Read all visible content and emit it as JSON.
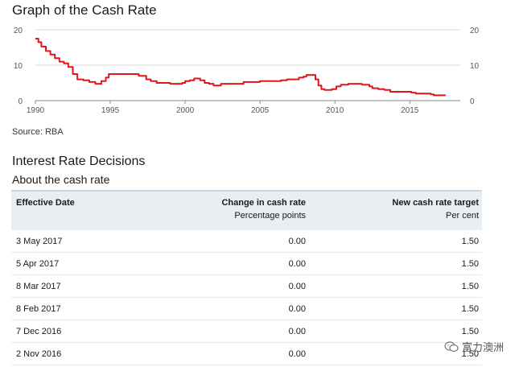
{
  "graph_title": "Graph of the Cash Rate",
  "source": "Source: RBA",
  "section_title": "Interest Rate Decisions",
  "subsection_title": "About the cash rate",
  "table": {
    "headers": {
      "date": "Effective Date",
      "change": "Change in cash rate",
      "change_unit": "Percentage points",
      "target": "New cash rate target",
      "target_unit": "Per cent"
    },
    "rows": [
      {
        "date": "3 May 2017",
        "change": "0.00",
        "target": "1.50"
      },
      {
        "date": "5 Apr 2017",
        "change": "0.00",
        "target": "1.50"
      },
      {
        "date": "8 Mar 2017",
        "change": "0.00",
        "target": "1.50"
      },
      {
        "date": "8 Feb 2017",
        "change": "0.00",
        "target": "1.50"
      },
      {
        "date": "7 Dec 2016",
        "change": "0.00",
        "target": "1.50"
      },
      {
        "date": "2 Nov 2016",
        "change": "0.00",
        "target": "1.50"
      }
    ]
  },
  "watermark": {
    "text": "富力澳洲",
    "icon": "wechat-icon"
  },
  "chart_data": {
    "type": "line",
    "title": "Graph of the Cash Rate",
    "xlabel": "",
    "ylabel": "",
    "xlim": [
      1990,
      2017.4
    ],
    "ylim": [
      0,
      20
    ],
    "xticks": [
      "1990",
      "1995",
      "2000",
      "2005",
      "2010",
      "2015"
    ],
    "yticks": [
      "0",
      "10",
      "20"
    ],
    "grid": true,
    "line_color": "#e0161c",
    "series": [
      {
        "x": [
          1990.0,
          1990.2,
          1990.4,
          1990.7,
          1991.0,
          1991.3,
          1991.6,
          1991.9,
          1992.2,
          1992.5,
          1992.8,
          1993.2,
          1993.6,
          1994.0,
          1994.4,
          1994.7,
          1994.9,
          1996.6,
          1996.9,
          1997.4,
          1997.7,
          1998.1,
          1999.0,
          1999.8,
          2000.0,
          2000.3,
          2000.6,
          2001.0,
          2001.3,
          2001.6,
          2001.9,
          2002.4,
          2003.0,
          2003.9,
          2005.0,
          2006.0,
          2006.4,
          2006.8,
          2007.6,
          2007.9,
          2008.1,
          2008.7,
          2008.9,
          2009.1,
          2009.3,
          2009.8,
          2010.1,
          2010.4,
          2010.9,
          2011.8,
          2012.3,
          2012.5,
          2012.9,
          2013.3,
          2013.7,
          2015.1,
          2015.4,
          2016.4,
          2016.6,
          2017.4
        ],
        "y": [
          17.5,
          16.5,
          15.25,
          14.0,
          13.0,
          12.0,
          11.0,
          10.5,
          9.5,
          7.5,
          6.0,
          5.75,
          5.25,
          4.75,
          5.5,
          6.5,
          7.5,
          7.5,
          7.0,
          6.0,
          5.5,
          5.0,
          4.75,
          5.0,
          5.5,
          5.75,
          6.25,
          5.75,
          5.0,
          4.75,
          4.25,
          4.75,
          4.75,
          5.25,
          5.5,
          5.5,
          5.75,
          6.0,
          6.5,
          6.75,
          7.25,
          6.0,
          4.25,
          3.25,
          3.0,
          3.25,
          4.0,
          4.5,
          4.75,
          4.5,
          4.0,
          3.5,
          3.25,
          3.0,
          2.5,
          2.25,
          2.0,
          1.75,
          1.5,
          1.5
        ]
      }
    ]
  }
}
